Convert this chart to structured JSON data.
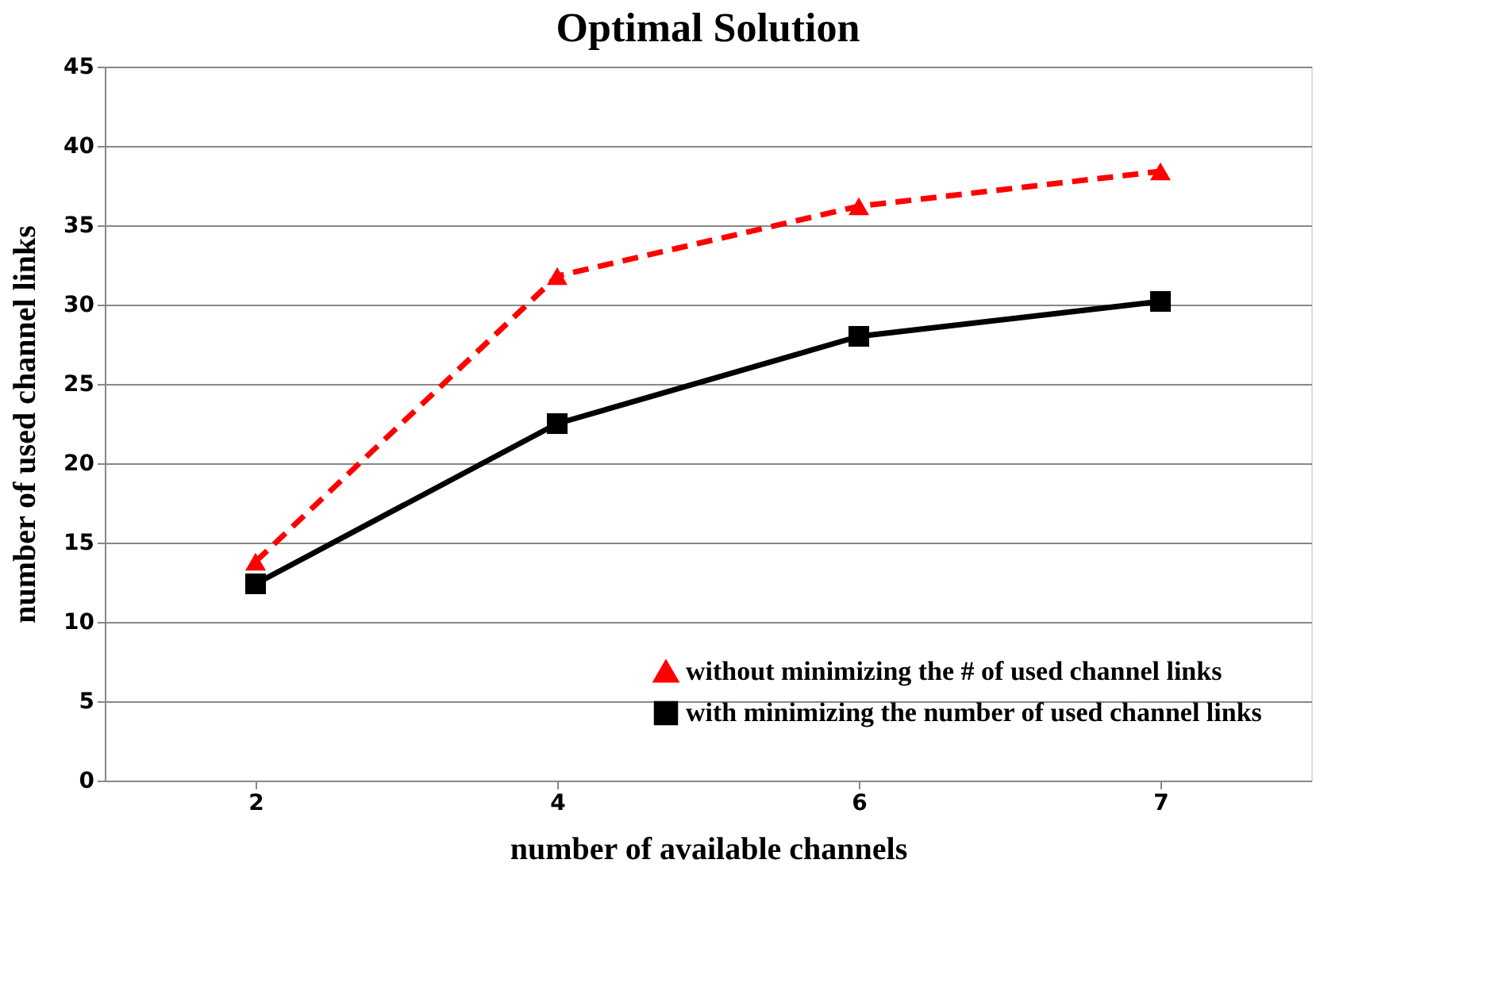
{
  "chart_data": {
    "type": "line",
    "title": "Optimal Solution",
    "xlabel": "number of available channels",
    "ylabel": "number of used channel links",
    "categories": [
      "2",
      "4",
      "6",
      "7"
    ],
    "series": [
      {
        "name": "without minimizing the # of used channel links",
        "color": "#ff0000",
        "values": [
          13.8,
          31.8,
          36.2,
          38.4
        ],
        "line_style": "dashed",
        "marker": "triangle"
      },
      {
        "name": "with minimizing the number of used channel links",
        "color": "#000000",
        "values": [
          12.4,
          22.5,
          28.0,
          30.2
        ],
        "line_style": "solid",
        "marker": "square"
      }
    ],
    "ylim": [
      0,
      45
    ],
    "yticks": [
      0,
      5,
      10,
      15,
      20,
      25,
      30,
      35,
      40,
      45
    ],
    "grid": "y",
    "legend": "bottom right"
  }
}
